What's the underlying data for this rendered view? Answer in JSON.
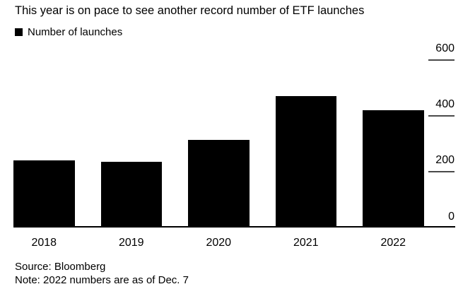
{
  "chart": {
    "title": "This year is on pace to see another record number of ETF launches",
    "legend_label": "Number of launches",
    "source": "Source: Bloomberg",
    "note": "Note: 2022 numbers are as of Dec. 7"
  },
  "chart_data": {
    "type": "bar",
    "title": "This year is on pace to see another record number of ETF launches",
    "legend": [
      "Number of launches"
    ],
    "legend_position": "top-left",
    "categories": [
      "2018",
      "2019",
      "2020",
      "2021",
      "2022"
    ],
    "series": [
      {
        "name": "Number of launches",
        "values": [
          240,
          235,
          315,
          470,
          420
        ]
      }
    ],
    "xlabel": "",
    "ylabel": "",
    "ylim": [
      0,
      600
    ],
    "yticks": [
      0,
      200,
      400,
      600
    ],
    "y_axis_side": "right",
    "grid": false,
    "bar_color": "#000000",
    "background_color": "#ffffff",
    "source": "Source: Bloomberg",
    "note": "Note: 2022 numbers are as of Dec. 7"
  },
  "colors": {
    "bar": "#000000",
    "text": "#000000",
    "tick_dash": "#4a4a4a",
    "axis_line": "#000000",
    "background": "#ffffff"
  }
}
